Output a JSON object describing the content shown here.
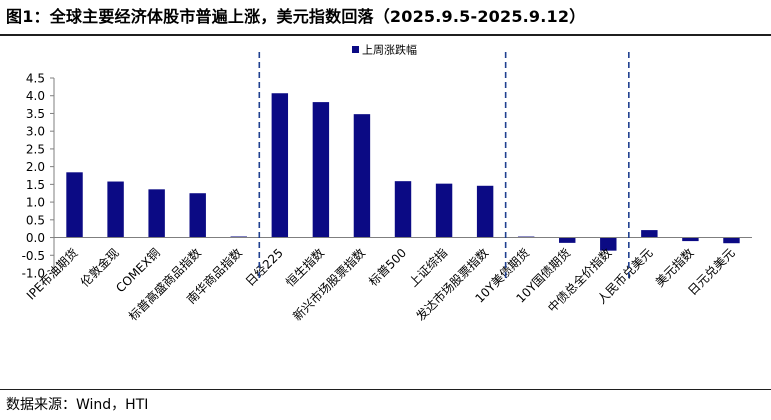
{
  "title": "图1：全球主要经济体股市普遍上涨，美元指数回落（2025.9.5-2025.9.12）",
  "source": "数据来源：Wind，HTI",
  "colors": {
    "bar": "#0b0a84",
    "axis": "#7f7f7f",
    "divider": "#1f3f8f"
  },
  "chart_data": {
    "type": "bar",
    "title": "图1：全球主要经济体股市普遍上涨，美元指数回落（2025.9.5-2025.9.12）",
    "xlabel": "",
    "ylabel": "",
    "ylim": [
      -1.0,
      4.5
    ],
    "yticks": [
      "4.5",
      "4.0",
      "3.5",
      "3.0",
      "2.5",
      "2.0",
      "1.5",
      "1.0",
      "0.5",
      "0.0",
      "-0.5",
      "-1.0"
    ],
    "grid": false,
    "legend_position": "top-center",
    "categories": [
      "IPE布油期货",
      "伦敦金现",
      "COMEX铜",
      "标普高盛商品指数",
      "南华商品指数",
      "日经225",
      "恒生指数",
      "新兴市场股票指数",
      "标普500",
      "上证综指",
      "发达市场股票指数",
      "10Y美债期货",
      "10Y国债期货",
      "中债总全价指数",
      "人民币兑美元",
      "美元指数",
      "日元兑美元"
    ],
    "series": [
      {
        "name": "上周涨跌幅",
        "values": [
          1.84,
          1.58,
          1.36,
          1.25,
          0.03,
          4.07,
          3.82,
          3.48,
          1.59,
          1.52,
          1.46,
          0.0,
          -0.15,
          -0.37,
          0.21,
          -0.1,
          -0.16
        ]
      }
    ],
    "dividers_after_index": [
      4,
      10,
      13
    ]
  }
}
